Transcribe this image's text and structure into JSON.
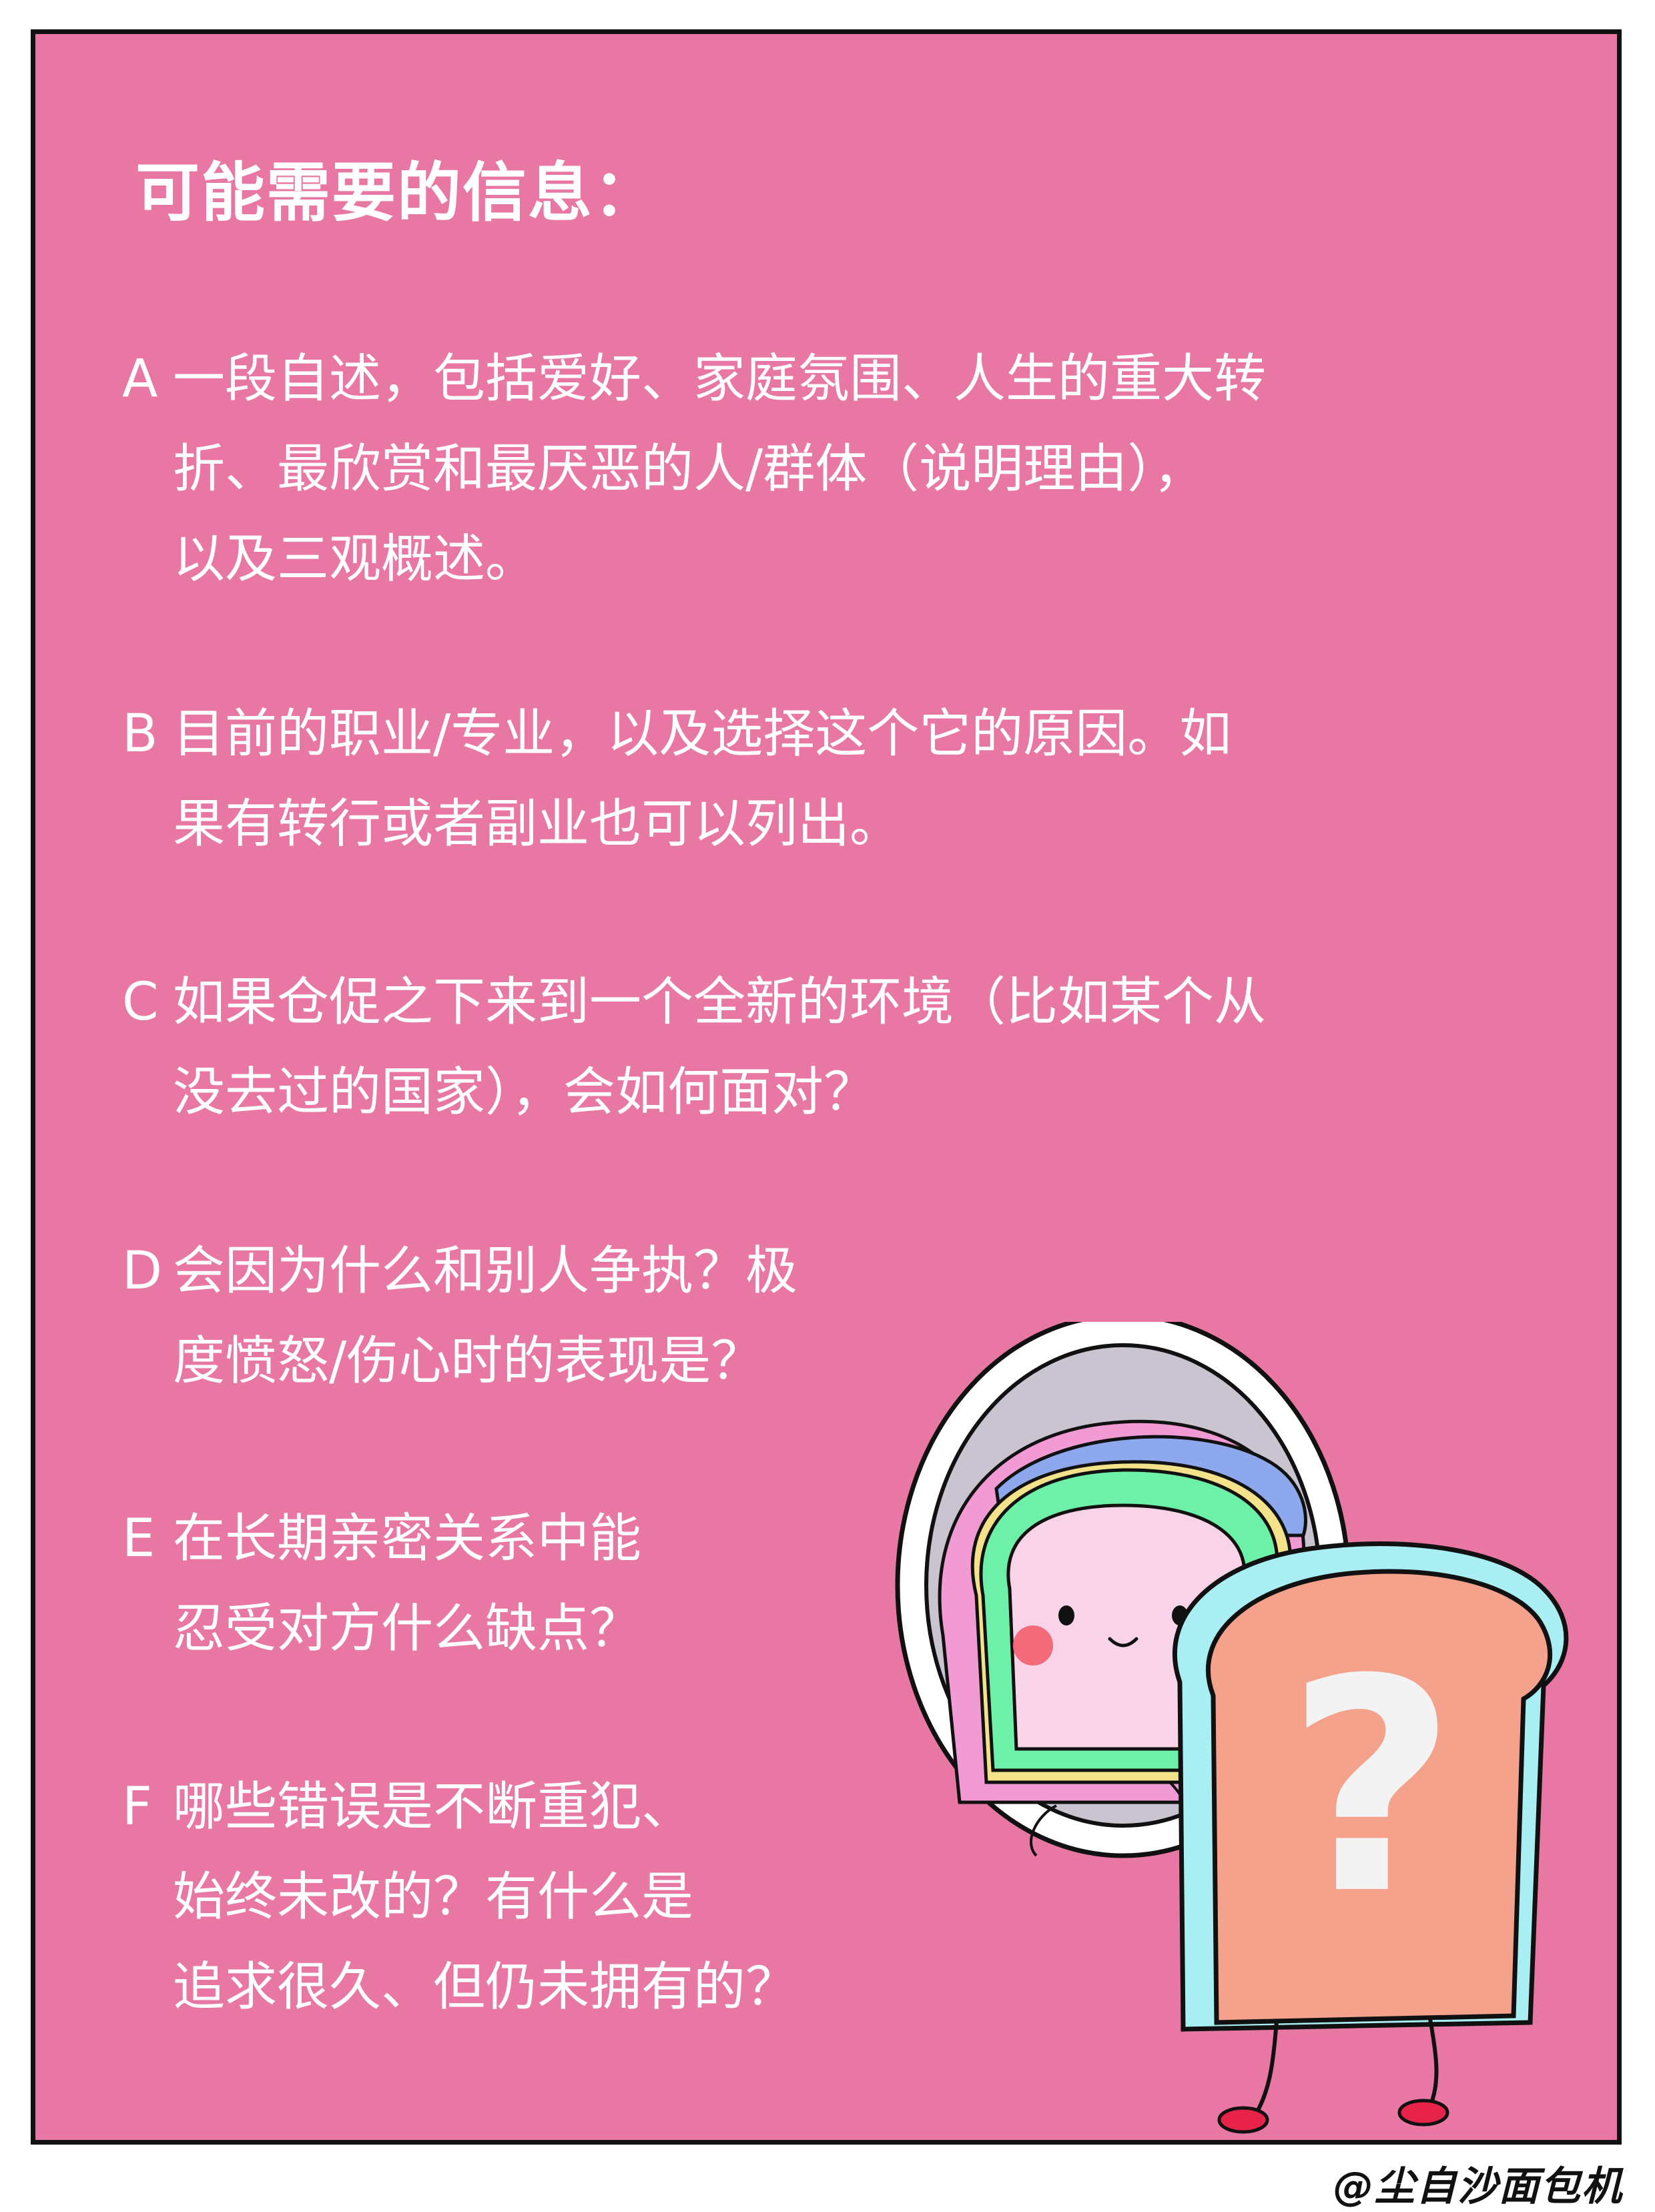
{
  "title": "可能需要的信息：",
  "items": [
    {
      "letter": "A",
      "lines": [
        "一段自述，包括爱好、家庭氛围、人生的重大转",
        "折、最欣赏和最厌恶的人/群体（说明理由），",
        "以及三观概述。"
      ]
    },
    {
      "letter": "B",
      "lines": [
        "目前的职业/专业，以及选择这个它的原因。如",
        "果有转行或者副业也可以列出。"
      ]
    },
    {
      "letter": "C",
      "lines": [
        "如果仓促之下来到一个全新的环境（比如某个从",
        "没去过的国家），会如何面对？"
      ]
    },
    {
      "letter": "D",
      "lines": [
        "会因为什么和别人争执？极",
        "度愤怒/伤心时的表现是？"
      ]
    },
    {
      "letter": "E",
      "lines": [
        "在长期亲密关系中能",
        "忍受对方什么缺点？"
      ]
    },
    {
      "letter": "F",
      "lines": [
        "哪些错误是不断重犯、",
        "始终未改的？有什么是",
        "追求很久、但仍未拥有的？"
      ]
    }
  ],
  "illustration": {
    "mirror_icon": "mirror-icon",
    "toast_icon": "toast-character-icon",
    "mark": "?"
  },
  "credit": "@尘自沙面包机",
  "colors": {
    "background": "#e878a3",
    "border": "#111111",
    "text": "#ffffff",
    "mirror_frame": "#ffffff",
    "mirror_glass": "#c9c4cf",
    "toast_crust": "#f4a28c",
    "toast_side": "#a8eef2",
    "reflection_face": "#f9d3e7",
    "reflection_green": "#6df0a8",
    "reflection_pink": "#f19ad3",
    "cheeks": "#f36a7a",
    "feet": "#e8234a"
  }
}
